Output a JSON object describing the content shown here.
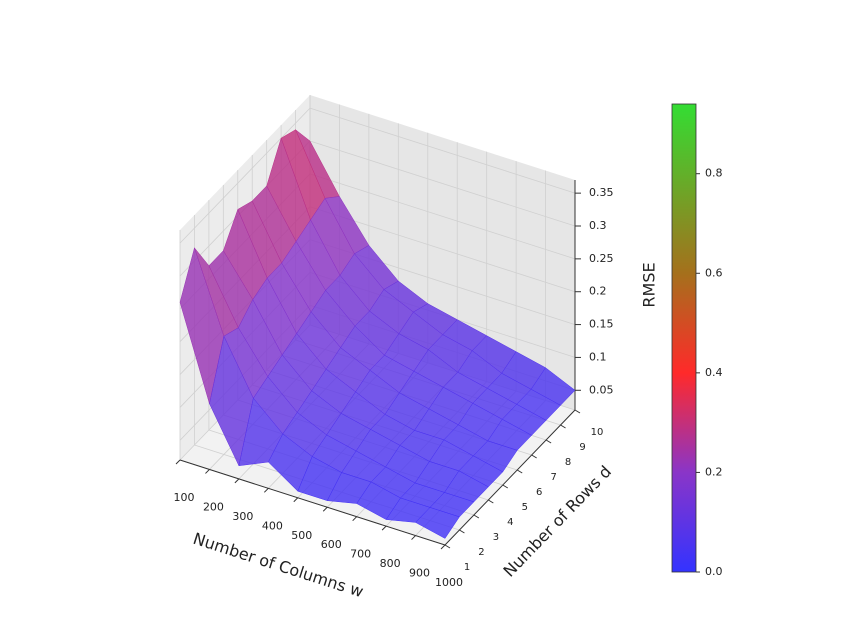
{
  "chart_data": {
    "type": "surface3d",
    "x_label": "Number of Columns w",
    "y_label": "Number of Rows d",
    "z_label": "RMSE",
    "x": [
      100,
      200,
      300,
      400,
      500,
      600,
      700,
      800,
      900,
      1000
    ],
    "y": [
      1,
      2,
      3,
      4,
      5,
      6,
      7,
      8,
      9,
      10
    ],
    "z": [
      [
        0.26,
        0.32,
        0.27,
        0.27,
        0.31,
        0.3,
        0.3,
        0.35,
        0.34,
        0.3
      ],
      [
        0.12,
        0.2,
        0.19,
        0.21,
        0.22,
        0.22,
        0.23,
        0.24,
        0.25,
        0.23
      ],
      [
        0.04,
        0.12,
        0.13,
        0.14,
        0.15,
        0.16,
        0.17,
        0.17,
        0.18,
        0.17
      ],
      [
        0.06,
        0.08,
        0.09,
        0.1,
        0.11,
        0.12,
        0.13,
        0.13,
        0.14,
        0.13
      ],
      [
        0.03,
        0.06,
        0.07,
        0.08,
        0.09,
        0.1,
        0.1,
        0.11,
        0.12,
        0.11
      ],
      [
        0.03,
        0.05,
        0.06,
        0.07,
        0.07,
        0.08,
        0.09,
        0.1,
        0.1,
        0.1
      ],
      [
        0.04,
        0.05,
        0.05,
        0.06,
        0.06,
        0.07,
        0.08,
        0.08,
        0.09,
        0.09
      ],
      [
        0.03,
        0.04,
        0.04,
        0.05,
        0.06,
        0.06,
        0.07,
        0.07,
        0.07,
        0.08
      ],
      [
        0.04,
        0.04,
        0.04,
        0.05,
        0.05,
        0.05,
        0.06,
        0.06,
        0.06,
        0.07
      ],
      [
        0.03,
        0.04,
        0.04,
        0.04,
        0.04,
        0.05,
        0.05,
        0.05,
        0.05,
        0.05
      ]
    ],
    "xlim": [
      100,
      1000
    ],
    "ylim": [
      1,
      10
    ],
    "zlim": [
      0.02,
      0.37
    ],
    "xticks": [
      100,
      200,
      300,
      400,
      500,
      600,
      700,
      800,
      900,
      1000
    ],
    "yticks": [
      1,
      2,
      3,
      4,
      5,
      6,
      7,
      8,
      9,
      10
    ],
    "zticks": [
      0.05,
      0.1,
      0.15,
      0.2,
      0.25,
      0.3,
      0.35
    ],
    "grid": true,
    "colormap": [
      [
        0,
        "#3333ff"
      ],
      [
        0.2,
        "#8a35c8"
      ],
      [
        0.4,
        "#ff2a2a"
      ],
      [
        0.6,
        "#a5701c"
      ],
      [
        0.94,
        "#33dd33"
      ]
    ],
    "colorbar_lim": [
      0,
      0.94
    ],
    "colorbar_ticks": [
      {
        "value": 0,
        "label": "0.0"
      },
      0.2,
      0.4,
      0.6,
      0.8
    ]
  }
}
